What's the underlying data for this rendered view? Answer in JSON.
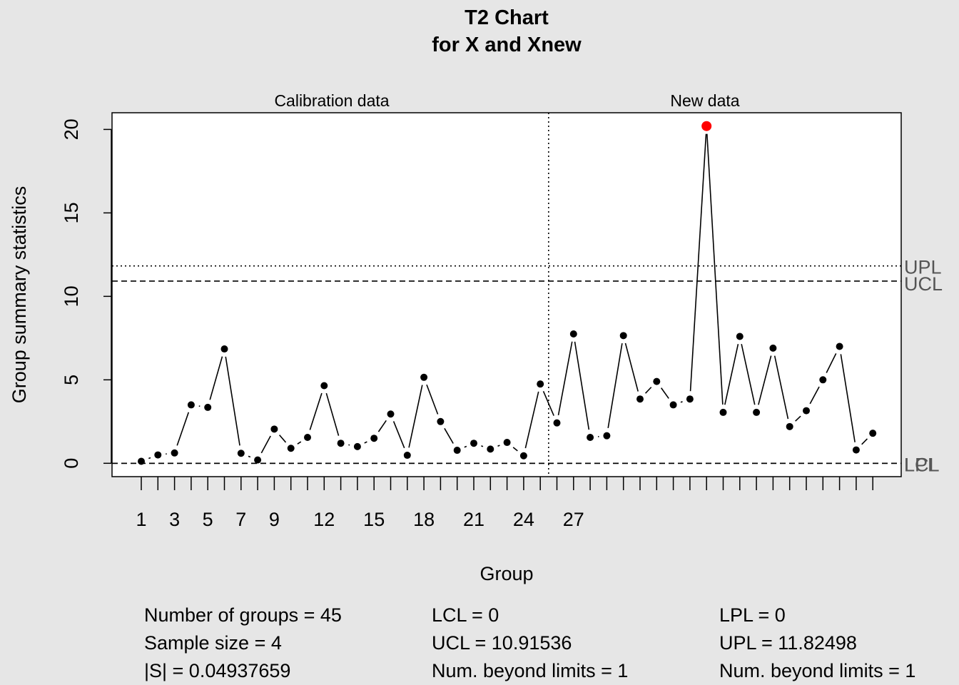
{
  "chart_data": {
    "type": "line",
    "title": "T2 Chart",
    "subtitle": "for X and Xnew",
    "xlabel": "Group",
    "ylabel": "Group summary statistics",
    "xlim": [
      0,
      46.5
    ],
    "ylim": [
      -0.8,
      21.0
    ],
    "yticks": [
      0,
      5,
      10,
      15,
      20
    ],
    "xtick_labels": [
      "1",
      "3",
      "5",
      "7",
      "9",
      "12",
      "15",
      "18",
      "21",
      "24",
      "27"
    ],
    "xtick_label_positions": [
      1,
      3,
      5,
      7,
      9,
      12,
      15,
      18,
      21,
      24,
      27
    ],
    "section_labels": [
      "Calibration data",
      "New data"
    ],
    "section_divider_x": 25.5,
    "values": [
      0.12,
      0.5,
      0.62,
      3.5,
      3.35,
      6.85,
      0.6,
      0.2,
      2.05,
      0.9,
      1.55,
      4.65,
      1.2,
      1.0,
      1.5,
      2.95,
      0.48,
      5.15,
      2.5,
      0.78,
      1.2,
      0.85,
      1.25,
      0.45,
      4.75,
      2.42,
      7.75,
      1.55,
      1.65,
      7.65,
      3.85,
      4.9,
      3.5,
      3.85,
      20.2,
      3.05,
      7.6,
      3.05,
      6.9,
      2.2,
      3.15,
      5.0,
      7.0,
      0.8,
      1.8
    ],
    "beyond_limits_index": 35,
    "limits": [
      {
        "name": "UPL",
        "value": 11.82498,
        "style": "dotted"
      },
      {
        "name": "UCL",
        "value": 10.91536,
        "style": "dashed"
      },
      {
        "name": "LPL",
        "value": 0,
        "style": "dashed"
      },
      {
        "name": "LCL",
        "value": 0,
        "style": "dashed"
      }
    ],
    "colors": {
      "points": "#000000",
      "beyond": "#ff0000",
      "limit_labels": "#555555",
      "background": "#e6e6e6",
      "plot_bg": "#ffffff"
    }
  },
  "stats": {
    "col1": [
      "Number of groups = 45",
      "Sample size = 4",
      "|S| = 0.04937659"
    ],
    "col2": [
      "LCL = 0",
      "UCL = 10.91536",
      "Num. beyond limits = 1"
    ],
    "col3": [
      "LPL = 0",
      "UPL = 11.82498",
      "Num. beyond limits = 1"
    ]
  }
}
